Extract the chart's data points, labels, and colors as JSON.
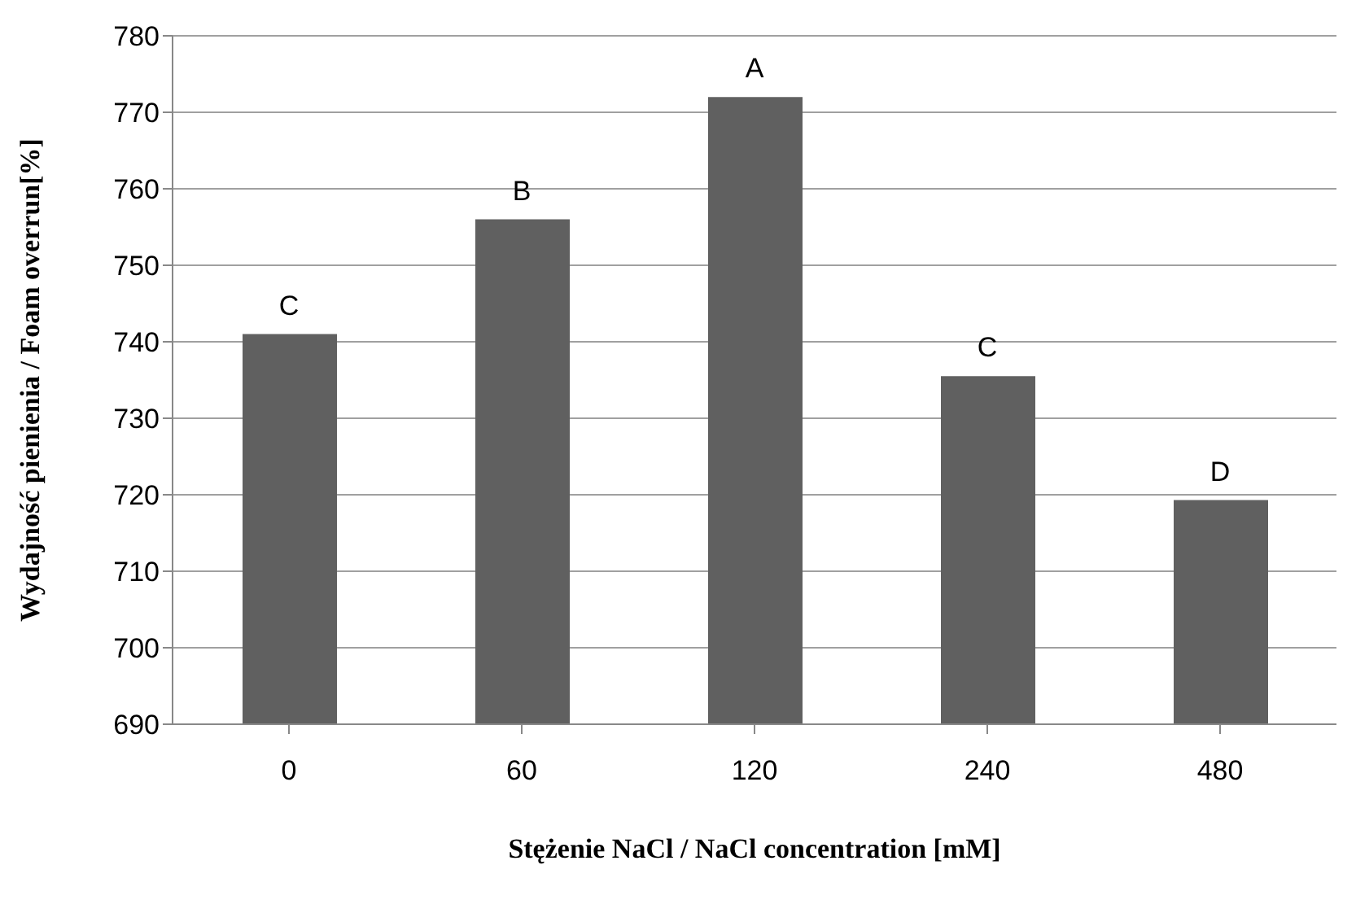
{
  "chart_data": {
    "type": "bar",
    "xlabel": "Stężenie NaCl / NaCl concentration          [mM]",
    "ylabel": "Wydajność pienienia / Foam overrun[%]",
    "categories": [
      "0",
      "60",
      "120",
      "240",
      "480"
    ],
    "values": [
      741,
      756,
      772,
      735.5,
      719.3
    ],
    "color": "#606060",
    "ylim": [
      690,
      780
    ],
    "yticks": [
      690,
      700,
      710,
      720,
      730,
      740,
      750,
      760,
      770,
      780
    ],
    "grid": "y",
    "annotations": [
      {
        "text": "C",
        "x": "0",
        "y": 741
      },
      {
        "text": "B",
        "x": "60",
        "y": 756
      },
      {
        "text": "A",
        "x": "120",
        "y": 772
      },
      {
        "text": "C",
        "x": "240",
        "y": 735.5
      },
      {
        "text": "D",
        "x": "480",
        "y": 719.3
      }
    ]
  }
}
